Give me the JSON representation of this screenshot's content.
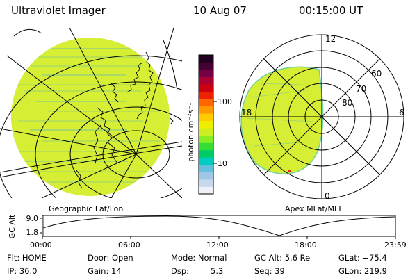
{
  "header": {
    "instrument": "Ultraviolet Imager",
    "date": "10 Aug 07",
    "time": "00:15:00 UT"
  },
  "colorbar": {
    "unit_label": "photon cm⁻²s⁻¹",
    "tick_100": "100",
    "tick_10": "10",
    "colors": [
      "#eef2f8",
      "#c8d8ec",
      "#9ec6e6",
      "#64bede",
      "#00ccc4",
      "#00cc66",
      "#33dd33",
      "#88ee22",
      "#ccee22",
      "#eeee00",
      "#ffcc00",
      "#ff9900",
      "#ff6600",
      "#ee2200",
      "#cc0011",
      "#aa0033",
      "#770044",
      "#440033",
      "#220022"
    ]
  },
  "geo_map": {
    "label": "Geographic Lat/Lon",
    "fill": "#d6ee33",
    "stripe": "#a6d86a"
  },
  "polar_map": {
    "label": "Apex MLat/MLT",
    "mlt_12": "12",
    "mlt_18": "18",
    "mlt_6": "6",
    "mlt_0": "0",
    "lat_60": "60",
    "lat_70": "70",
    "lat_80": "80"
  },
  "altitude_plot": {
    "ylabel": "GC Alt",
    "y_max": "9.0",
    "y_min": "1.8",
    "x_ticks": [
      "00:00",
      "06:00",
      "12:00",
      "18:00",
      "23:59"
    ]
  },
  "status": {
    "flt": "Flt: HOME",
    "ip": "IP: 36.0",
    "door": "Door: Open",
    "gain": "Gain: 14",
    "mode": "Mode: Normal",
    "dsp_label": "Dsp:",
    "dsp_value": "5.3",
    "gc_alt": "GC Alt: 5.6 Re",
    "seq": "Seq: 39",
    "glat": "GLat: −75.4",
    "glon": "GLon: 219.9"
  }
}
